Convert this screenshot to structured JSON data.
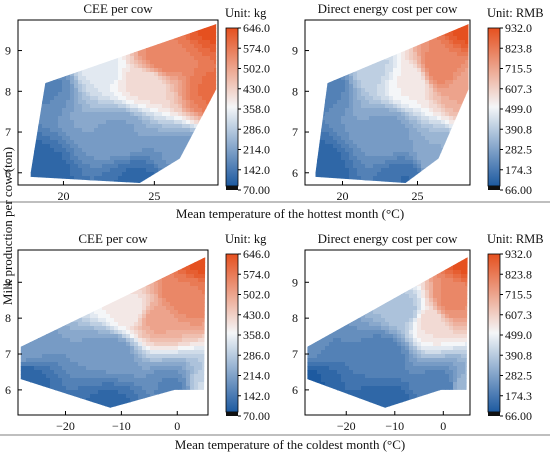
{
  "figure": {
    "ylabel_shared": "Milk production per cow (ton)",
    "top_row_xlabel": "Mean temperature of the hottest month (°C)",
    "bottom_row_xlabel": "Mean temperature of the coldest month (°C)"
  },
  "colors": {
    "low": "#1d5aa0",
    "mid": "#f4f6f8",
    "high": "#e5501f"
  },
  "chart_data": [
    {
      "type": "heatmap",
      "title": "CEE per cow",
      "unit_label": "Unit: kg",
      "xlim": [
        17.5,
        28.5
      ],
      "ylim": [
        5.7,
        9.75
      ],
      "xticks": [
        20,
        25
      ],
      "yticks": [
        6,
        7,
        8,
        9
      ],
      "colorbar_ticks": [
        "646.0",
        "574.0",
        "502.0",
        "430.0",
        "358.0",
        "286.0",
        "214.0",
        "142.0",
        "70.00"
      ],
      "colorbar_range": [
        70.0,
        646.0
      ],
      "polygon": [
        [
          18.2,
          5.9
        ],
        [
          24.2,
          5.75
        ],
        [
          26.4,
          6.35
        ],
        [
          28.4,
          8.05
        ],
        [
          28.4,
          9.65
        ],
        [
          19.0,
          8.2
        ],
        [
          18.2,
          6.0
        ]
      ],
      "points": [
        {
          "x": 19.0,
          "y": 8.2,
          "value": 150
        },
        {
          "x": 18.2,
          "y": 6.0,
          "value": 85
        },
        {
          "x": 24.2,
          "y": 5.75,
          "value": 100
        },
        {
          "x": 26.4,
          "y": 6.35,
          "value": 180
        },
        {
          "x": 28.4,
          "y": 8.05,
          "value": 590
        },
        {
          "x": 28.4,
          "y": 9.65,
          "value": 640
        },
        {
          "x": 25.5,
          "y": 8.8,
          "value": 560
        },
        {
          "x": 23.0,
          "y": 7.0,
          "value": 200
        },
        {
          "x": 24.5,
          "y": 8.2,
          "value": 400
        },
        {
          "x": 22.0,
          "y": 8.6,
          "value": 330
        }
      ]
    },
    {
      "type": "heatmap",
      "title": "Direct energy cost per cow",
      "unit_label": "Unit: RMB",
      "xlim": [
        17.5,
        28.5
      ],
      "ylim": [
        5.7,
        9.75
      ],
      "xticks": [
        20,
        25
      ],
      "yticks": [
        6,
        7,
        8,
        9
      ],
      "colorbar_ticks": [
        "932.0",
        "823.8",
        "715.5",
        "607.3",
        "499.0",
        "390.8",
        "282.5",
        "174.3",
        "66.00"
      ],
      "colorbar_range": [
        66.0,
        932.0
      ],
      "polygon": [
        [
          18.2,
          5.9
        ],
        [
          24.2,
          5.75
        ],
        [
          26.4,
          6.35
        ],
        [
          28.4,
          8.05
        ],
        [
          28.4,
          9.65
        ],
        [
          19.0,
          8.2
        ],
        [
          18.2,
          6.0
        ]
      ],
      "points": [
        {
          "x": 19.0,
          "y": 8.2,
          "value": 180
        },
        {
          "x": 18.2,
          "y": 6.0,
          "value": 90
        },
        {
          "x": 24.2,
          "y": 5.75,
          "value": 120
        },
        {
          "x": 26.4,
          "y": 6.35,
          "value": 300
        },
        {
          "x": 28.4,
          "y": 8.05,
          "value": 700
        },
        {
          "x": 28.4,
          "y": 9.65,
          "value": 930
        },
        {
          "x": 26.5,
          "y": 8.6,
          "value": 800
        },
        {
          "x": 23.0,
          "y": 7.0,
          "value": 250
        },
        {
          "x": 24.5,
          "y": 8.2,
          "value": 520
        },
        {
          "x": 22.0,
          "y": 8.6,
          "value": 400
        }
      ]
    },
    {
      "type": "heatmap",
      "title": "CEE per cow",
      "unit_label": "Unit: kg",
      "xlim": [
        -28.5,
        5.5
      ],
      "ylim": [
        5.3,
        9.9
      ],
      "xticks": [
        -20,
        -10,
        0
      ],
      "yticks": [
        6,
        7,
        8,
        9
      ],
      "colorbar_ticks": [
        "646.0",
        "574.0",
        "502.0",
        "430.0",
        "358.0",
        "286.0",
        "214.0",
        "142.0",
        "70.00"
      ],
      "colorbar_range": [
        70.0,
        646.0
      ],
      "polygon": [
        [
          -28.0,
          6.3
        ],
        [
          -12.0,
          5.5
        ],
        [
          -0.5,
          6.0
        ],
        [
          4.8,
          6.0
        ],
        [
          5.0,
          9.7
        ],
        [
          -28.0,
          7.2
        ]
      ],
      "points": [
        {
          "x": -28.0,
          "y": 7.2,
          "value": 200
        },
        {
          "x": -28.0,
          "y": 6.3,
          "value": 90
        },
        {
          "x": -12.0,
          "y": 5.5,
          "value": 100
        },
        {
          "x": -0.5,
          "y": 6.0,
          "value": 150
        },
        {
          "x": 4.8,
          "y": 6.0,
          "value": 300
        },
        {
          "x": 5.0,
          "y": 9.7,
          "value": 646
        },
        {
          "x": 1.0,
          "y": 8.6,
          "value": 560
        },
        {
          "x": -4.0,
          "y": 8.0,
          "value": 500
        },
        {
          "x": -12.0,
          "y": 7.0,
          "value": 180
        },
        {
          "x": -8.0,
          "y": 8.2,
          "value": 380
        }
      ]
    },
    {
      "type": "heatmap",
      "title": "Direct energy cost per cow",
      "unit_label": "Unit: RMB",
      "xlim": [
        -28.5,
        5.5
      ],
      "ylim": [
        5.3,
        9.9
      ],
      "xticks": [
        -20,
        -10,
        0
      ],
      "yticks": [
        6,
        7,
        8,
        9
      ],
      "colorbar_ticks": [
        "932.0",
        "823.8",
        "715.5",
        "607.3",
        "499.0",
        "390.8",
        "282.5",
        "174.3",
        "66.00"
      ],
      "colorbar_range": [
        66.0,
        932.0
      ],
      "polygon": [
        [
          -28.0,
          6.3
        ],
        [
          -12.0,
          5.5
        ],
        [
          -0.5,
          6.0
        ],
        [
          4.8,
          6.0
        ],
        [
          5.0,
          9.7
        ],
        [
          -28.0,
          7.2
        ]
      ],
      "points": [
        {
          "x": -28.0,
          "y": 7.2,
          "value": 200
        },
        {
          "x": -28.0,
          "y": 6.3,
          "value": 80
        },
        {
          "x": -12.0,
          "y": 5.5,
          "value": 90
        },
        {
          "x": -0.5,
          "y": 6.0,
          "value": 160
        },
        {
          "x": 4.8,
          "y": 6.0,
          "value": 320
        },
        {
          "x": 5.0,
          "y": 9.7,
          "value": 930
        },
        {
          "x": 1.5,
          "y": 8.5,
          "value": 780
        },
        {
          "x": -3.0,
          "y": 7.9,
          "value": 560
        },
        {
          "x": -12.0,
          "y": 7.0,
          "value": 170
        },
        {
          "x": -8.0,
          "y": 8.2,
          "value": 350
        }
      ]
    }
  ]
}
